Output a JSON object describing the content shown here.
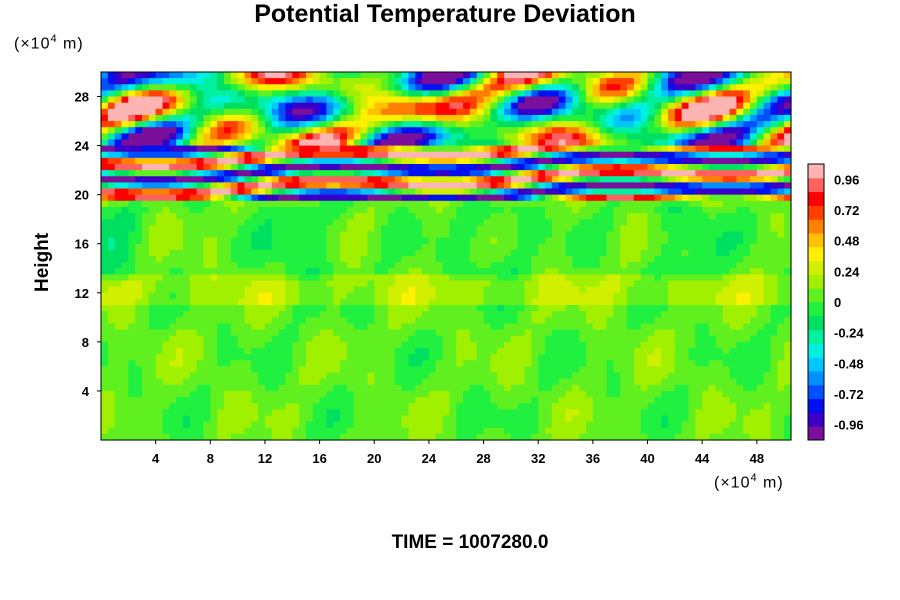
{
  "chart_data": {
    "type": "heatmap",
    "title": "Potential Temperature Deviation",
    "ylabel": "Height",
    "y_unit": "(×10",
    "x_unit": "(×10",
    "unit_exponent": "4",
    "unit_suffix": " m)",
    "xlim": [
      0,
      50.5
    ],
    "ylim": [
      0,
      30
    ],
    "x_ticks": [
      "4",
      "8",
      "12",
      "16",
      "20",
      "24",
      "28",
      "32",
      "36",
      "40",
      "44",
      "48"
    ],
    "x_tick_values": [
      4,
      8,
      12,
      16,
      20,
      24,
      28,
      32,
      36,
      40,
      44,
      48
    ],
    "y_ticks": [
      "4",
      "8",
      "12",
      "16",
      "20",
      "24",
      "28"
    ],
    "y_tick_values": [
      4,
      8,
      12,
      16,
      20,
      24,
      28
    ],
    "colorbar": {
      "labels": [
        "0.96",
        "0.72",
        "0.48",
        "0.24",
        "0",
        "-0.24",
        "-0.48",
        "-0.72",
        "-0.96"
      ],
      "values": [
        0.96,
        0.72,
        0.48,
        0.24,
        0,
        -0.24,
        -0.48,
        -0.72,
        -0.96
      ],
      "range": [
        -1.08,
        1.08
      ],
      "colors": [
        "#7a0f9c",
        "#3a00c8",
        "#0010f0",
        "#0050ff",
        "#0090ff",
        "#00c8ff",
        "#00f0e0",
        "#00f0a0",
        "#00e060",
        "#20f040",
        "#60f020",
        "#a0f000",
        "#d0f000",
        "#fff000",
        "#ffc000",
        "#ff8000",
        "#ff4000",
        "#ff0000",
        "#ff6060",
        "#ffb4b4"
      ]
    },
    "field_description_values": {
      "lower_troposphere_value": 0.05,
      "band_layer_height_range": [
        19.5,
        24
      ],
      "upper_layer_height_range": [
        24,
        30
      ]
    }
  },
  "footer": {
    "time_label": "TIME = 1007280.0"
  }
}
